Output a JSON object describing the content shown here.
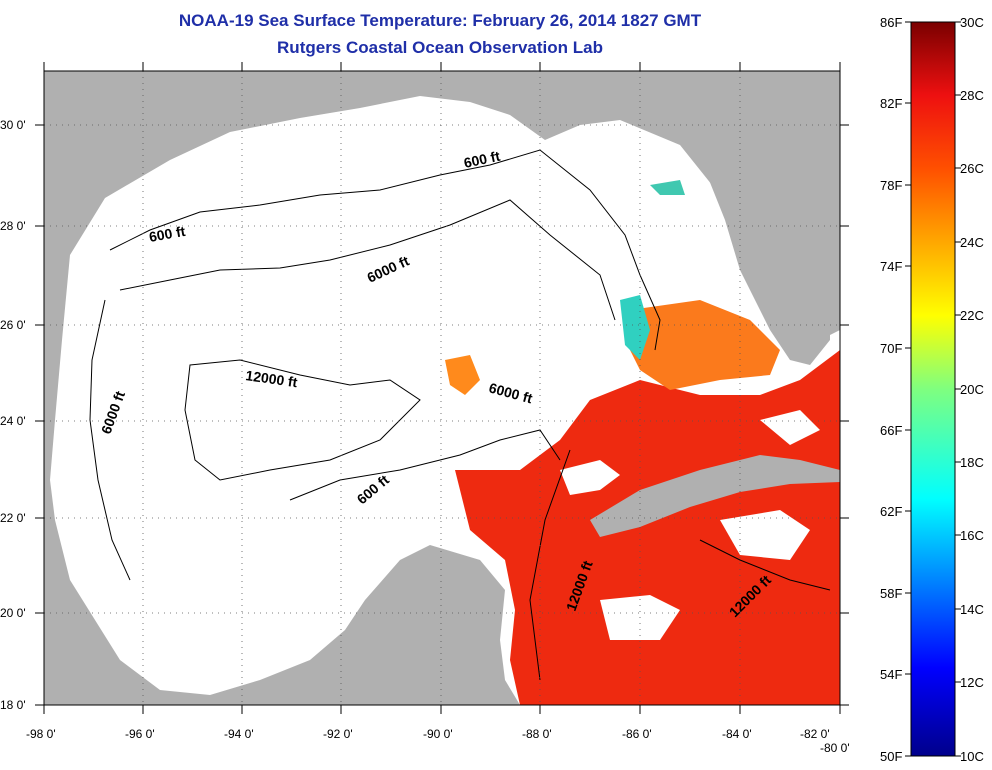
{
  "title": "NOAA-19 Sea Surface Temperature:  February 26, 2014 1827 GMT",
  "subtitle": "Rutgers Coastal Ocean Observation Lab",
  "lon_labels": [
    "-98 0'",
    "-96 0'",
    "-94 0'",
    "-92 0'",
    "-90 0'",
    "-88 0'",
    "-86 0'",
    "-84 0'",
    "-82 0'",
    "-80 0'"
  ],
  "lat_labels": [
    "30 0'",
    "28 0'",
    "26 0'",
    "24 0'",
    "22 0'",
    "20 0'",
    "18 0'"
  ],
  "contour_labels": [
    "600 ft",
    "600 ft",
    "6000 ft",
    "6000 ft",
    "12000 ft",
    "6000 ft",
    "600 ft",
    "12000 ft",
    "12000 ft"
  ],
  "colorbar": {
    "fahrenheit": [
      "86F",
      "82F",
      "78F",
      "74F",
      "70F",
      "66F",
      "62F",
      "58F",
      "54F",
      "50F"
    ],
    "celsius": [
      "30C",
      "28C",
      "26C",
      "24C",
      "22C",
      "20C",
      "18C",
      "16C",
      "14C",
      "12C",
      "10C"
    ]
  },
  "colors": {
    "land": "#b0b0b0",
    "water_no_data": "#ffffff",
    "sst_warm": "#ee2a10",
    "title": "#1f2fa8"
  }
}
